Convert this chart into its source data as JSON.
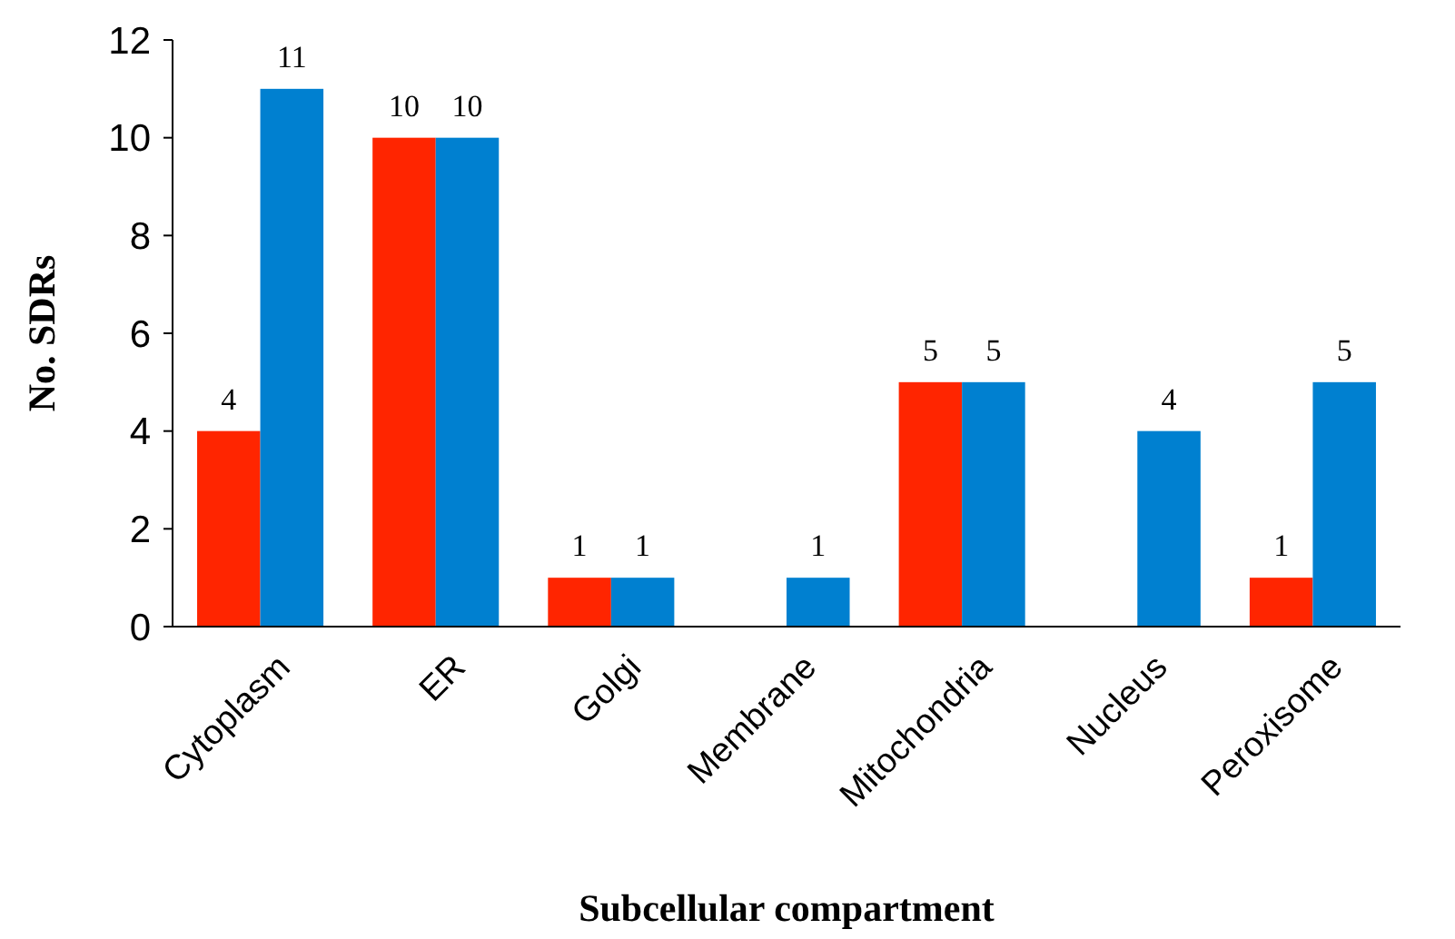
{
  "chart_data": {
    "type": "bar",
    "xlabel": "Subcellular compartment",
    "ylabel": "No. SDRs",
    "categories": [
      "Cytoplasm",
      "ER",
      "Golgi",
      "Membrane",
      "Mitochondria",
      "Nucleus",
      "Peroxisome"
    ],
    "series": [
      {
        "color": "#ff2500",
        "values": [
          4,
          10,
          1,
          null,
          5,
          null,
          1
        ],
        "value_labels": [
          "4",
          "10",
          "1",
          null,
          "5",
          null,
          "1"
        ]
      },
      {
        "color": "#0080d0",
        "values": [
          11,
          10,
          1,
          1,
          5,
          4,
          5
        ],
        "value_labels": [
          "11",
          "10",
          "1",
          "1",
          "5",
          "4",
          "5"
        ]
      }
    ],
    "ylim": [
      0,
      12
    ],
    "yticks": [
      0,
      2,
      4,
      6,
      8,
      10,
      12
    ],
    "grid": false
  }
}
